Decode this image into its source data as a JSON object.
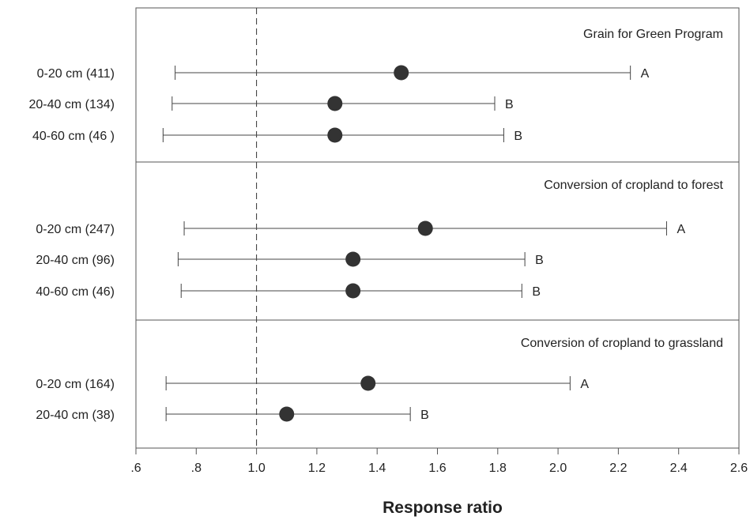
{
  "chart_data": {
    "type": "forest",
    "xlabel": "Response ratio",
    "xlim": [
      0.6,
      2.6
    ],
    "x_ticks": [
      ".6",
      ".8",
      "1.0",
      "1.2",
      "1.4",
      "1.6",
      "1.8",
      "2.0",
      "2.2",
      "2.4",
      "2.6"
    ],
    "reference_line": 1.0,
    "panels": [
      {
        "title": "Grain for Green Program",
        "rows": [
          {
            "label": "0-20 cm (411)",
            "mean": 1.48,
            "lower": 0.73,
            "upper": 2.24,
            "letter": "A"
          },
          {
            "label": "20-40 cm (134)",
            "mean": 1.26,
            "lower": 0.72,
            "upper": 1.79,
            "letter": "B"
          },
          {
            "label": "40-60 cm (46 )",
            "mean": 1.26,
            "lower": 0.69,
            "upper": 1.82,
            "letter": "B"
          }
        ]
      },
      {
        "title": "Conversion of cropland to forest",
        "rows": [
          {
            "label": "0-20 cm (247)",
            "mean": 1.56,
            "lower": 0.76,
            "upper": 2.36,
            "letter": "A"
          },
          {
            "label": "20-40 cm (96)",
            "mean": 1.32,
            "lower": 0.74,
            "upper": 1.89,
            "letter": "B"
          },
          {
            "label": "40-60 cm (46)",
            "mean": 1.32,
            "lower": 0.75,
            "upper": 1.88,
            "letter": "B"
          }
        ]
      },
      {
        "title": "Conversion of cropland to grassland",
        "rows": [
          {
            "label": "0-20 cm (164)",
            "mean": 1.37,
            "lower": 0.7,
            "upper": 2.04,
            "letter": "A"
          },
          {
            "label": "20-40 cm (38)",
            "mean": 1.1,
            "lower": 0.7,
            "upper": 1.51,
            "letter": "B"
          }
        ]
      }
    ],
    "colors": {
      "marker": "#333333",
      "line": "#444444",
      "frame": "#555555"
    }
  }
}
